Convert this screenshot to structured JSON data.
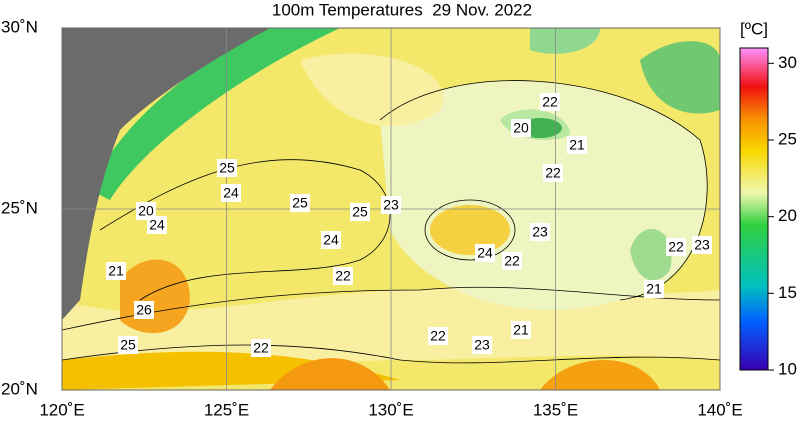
{
  "chart_data": {
    "type": "map",
    "title": "100m Temperatures  29 Nov. 2022",
    "xlim": [
      120,
      140
    ],
    "ylim": [
      20,
      30
    ],
    "xticks": [
      {
        "value": 120,
        "label": "120˚E"
      },
      {
        "value": 125,
        "label": "125˚E"
      },
      {
        "value": 130,
        "label": "130˚E"
      },
      {
        "value": 135,
        "label": "135˚E"
      },
      {
        "value": 140,
        "label": "140˚E"
      }
    ],
    "yticks": [
      {
        "value": 20,
        "label": "20˚N"
      },
      {
        "value": 25,
        "label": "25˚N"
      },
      {
        "value": 30,
        "label": "30˚N"
      }
    ],
    "colorbar": {
      "label": "[ºC]",
      "lim": [
        10,
        31
      ],
      "ticks": [
        10,
        15,
        20,
        25,
        30
      ]
    },
    "contour_labels": [
      "22",
      "20",
      "21",
      "22",
      "25",
      "24",
      "25",
      "25",
      "23",
      "20",
      "24",
      "24",
      "23",
      "24",
      "22",
      "22",
      "23",
      "21",
      "22",
      "21",
      "26",
      "22",
      "21",
      "23",
      "25",
      "22"
    ]
  }
}
